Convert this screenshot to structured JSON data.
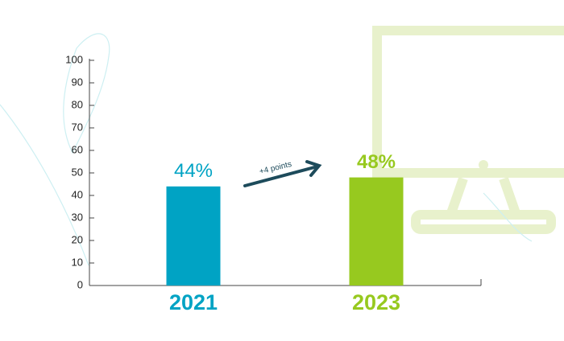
{
  "chart_data": {
    "type": "bar",
    "categories": [
      "2021",
      "2023"
    ],
    "values": [
      44,
      48
    ],
    "value_labels": [
      "44%",
      "48%"
    ],
    "colors": [
      "#00a3c4",
      "#97c91f"
    ],
    "annotation": "+4 points",
    "ylim": [
      0,
      100
    ],
    "yticks": [
      0,
      10,
      20,
      30,
      40,
      50,
      60,
      70,
      80,
      90,
      100
    ]
  }
}
